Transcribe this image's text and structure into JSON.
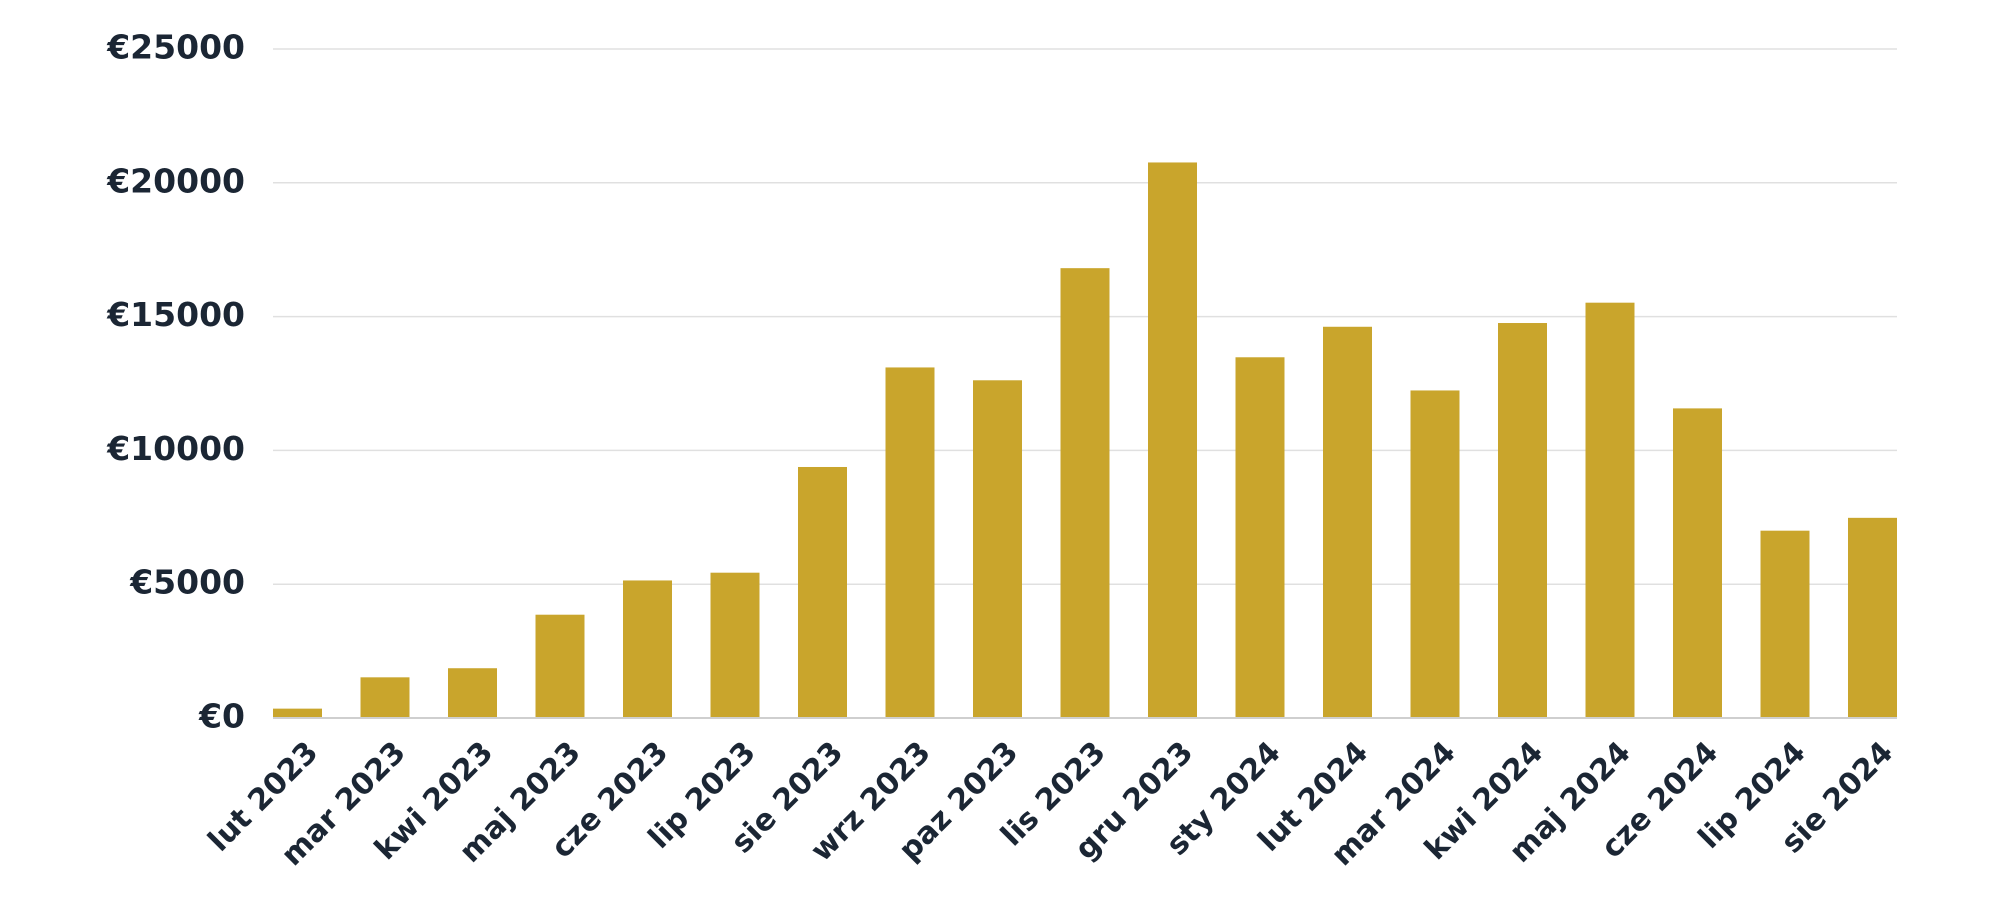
{
  "chart_data": {
    "type": "bar",
    "categories": [
      "lut 2023",
      "mar 2023",
      "kwi 2023",
      "maj 2023",
      "cze 2023",
      "lip 2023",
      "sie 2023",
      "wrz 2023",
      "paz 2023",
      "lis 2023",
      "gru 2023",
      "sty 2024",
      "lut 2024",
      "mar 2024",
      "kwi 2024",
      "maj 2024",
      "cze 2024",
      "lip 2024",
      "sie 2024"
    ],
    "values": [
      350,
      1520,
      1860,
      3860,
      5140,
      5430,
      9380,
      13100,
      12620,
      16810,
      20760,
      13480,
      14620,
      12240,
      14760,
      15520,
      11570,
      7000,
      7480
    ],
    "color": "#c9a52c",
    "ylim": [
      0,
      25000
    ],
    "yticks": [
      {
        "value": 0,
        "label": "€0"
      },
      {
        "value": 5000,
        "label": "€5000"
      },
      {
        "value": 10000,
        "label": "€10000"
      },
      {
        "value": 15000,
        "label": "€15000"
      },
      {
        "value": 20000,
        "label": "€20000"
      },
      {
        "value": 25000,
        "label": "€25000"
      }
    ],
    "grid": true
  }
}
